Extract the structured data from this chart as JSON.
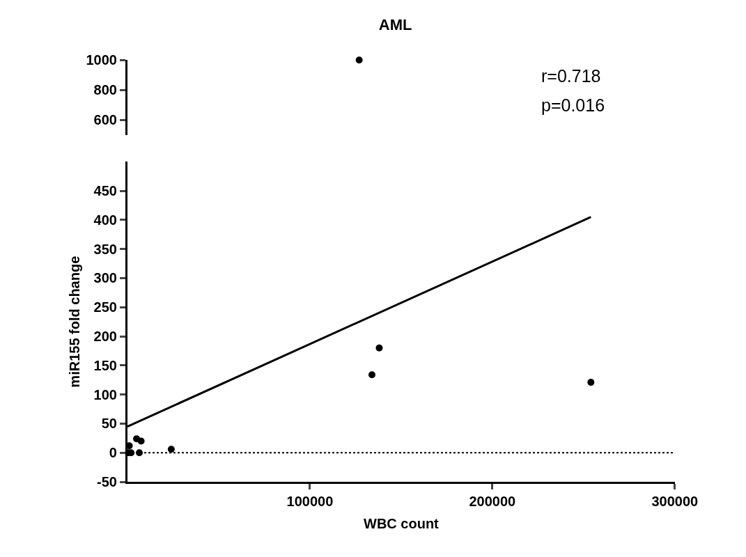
{
  "chart_data": [
    {
      "type": "scatter",
      "title": "AML",
      "annotations": [
        "r=0.718",
        "p=0.016"
      ],
      "x": [
        127000
      ],
      "values": [
        1000
      ],
      "color": "#000000",
      "marker": "circle",
      "xlim": [
        0,
        300000
      ],
      "ylim": [
        500,
        1000
      ],
      "yticks": [
        600,
        800,
        1000
      ],
      "tick_labels": "y"
    },
    {
      "type": "scatter",
      "xlabel": "WBC count",
      "ylabel": "miR155 fold change",
      "series": [
        {
          "type": "scatter",
          "color": "#000000",
          "x": [
            500,
            1000,
            2000,
            5000,
            6500,
            7500,
            24000,
            134000,
            138000,
            254000
          ],
          "values": [
            0,
            12,
            0,
            24,
            0,
            20,
            6,
            134,
            180,
            121
          ]
        },
        {
          "type": "line",
          "color": "#000000",
          "marker": "none",
          "x": [
            0,
            254000
          ],
          "values": [
            45,
            405
          ]
        }
      ],
      "marker": "circle",
      "xlim": [
        0,
        300000
      ],
      "xticks": [
        100000,
        200000,
        300000
      ],
      "ylim": [
        -50,
        500
      ],
      "yticks": [
        -50,
        0,
        50,
        100,
        150,
        200,
        250,
        300,
        350,
        400,
        450
      ],
      "ref_lines": [
        {
          "axis": "y",
          "value": 0,
          "color": "#000000",
          "line_style": "dotted"
        }
      ]
    }
  ]
}
